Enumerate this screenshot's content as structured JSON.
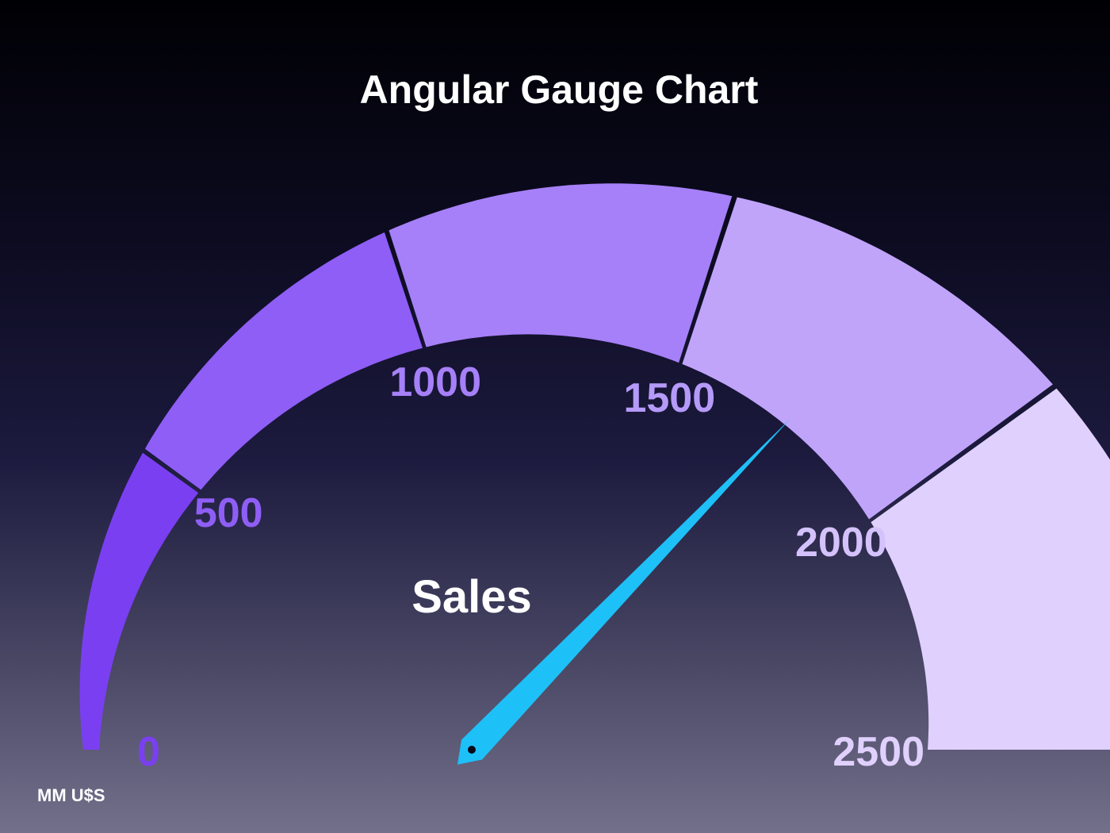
{
  "chart_data": {
    "type": "gauge",
    "title": "Angular Gauge Chart",
    "label": "Sales",
    "unit": "MM U$S",
    "min": 0,
    "max": 2500,
    "value": 1860,
    "bands": [
      {
        "from": 0,
        "to": 500,
        "color": "#7b3ff2"
      },
      {
        "from": 500,
        "to": 1000,
        "color": "#8f5ef6"
      },
      {
        "from": 1000,
        "to": 1500,
        "color": "#a680f8"
      },
      {
        "from": 1500,
        "to": 2000,
        "color": "#c0a4fa"
      },
      {
        "from": 2000,
        "to": 2500,
        "color": "#e0d0fd"
      }
    ],
    "ticks": [
      {
        "value": 0,
        "label": "0",
        "color": "#7b3ff2"
      },
      {
        "value": 500,
        "label": "500",
        "color": "#8f5ef6"
      },
      {
        "value": 1000,
        "label": "1000",
        "color": "#a680f8"
      },
      {
        "value": 1500,
        "label": "1500",
        "color": "#b59af9"
      },
      {
        "value": 2000,
        "label": "2000",
        "color": "#d4c2fc"
      },
      {
        "value": 2500,
        "label": "2500",
        "color": "#e0d0fd"
      }
    ],
    "needle_color": "#1ec0f8"
  }
}
